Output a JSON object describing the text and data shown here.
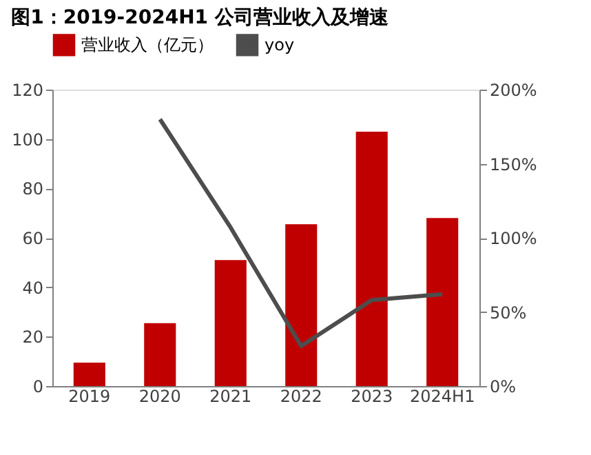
{
  "chart_data": {
    "type": "bar",
    "title": "图1：2019-2024H1 公司营业收入及增速",
    "categories": [
      "2019",
      "2020",
      "2021",
      "2022",
      "2023",
      "2024H1"
    ],
    "series": [
      {
        "name": "营业收入（亿元）",
        "color": "#c00000",
        "values": [
          9.5,
          25.5,
          51,
          65.5,
          103,
          68
        ]
      },
      {
        "name": "yoy",
        "type": "line",
        "axis": "y2",
        "color": "#4d4d4d",
        "values": [
          null,
          180,
          107,
          27,
          58,
          62
        ]
      }
    ],
    "ylim": [
      0,
      120
    ],
    "yticks": [
      0,
      20,
      40,
      60,
      80,
      100,
      120
    ],
    "y2lim": [
      0,
      200
    ],
    "y2ticks": [
      {
        "value": 0,
        "label": "0%"
      },
      {
        "value": 50,
        "label": "50%"
      },
      {
        "value": 100,
        "label": "100%"
      },
      {
        "value": 150,
        "label": "150%"
      },
      {
        "value": 200,
        "label": "200%"
      }
    ],
    "grid": false,
    "legend": "top",
    "marker": "none"
  }
}
